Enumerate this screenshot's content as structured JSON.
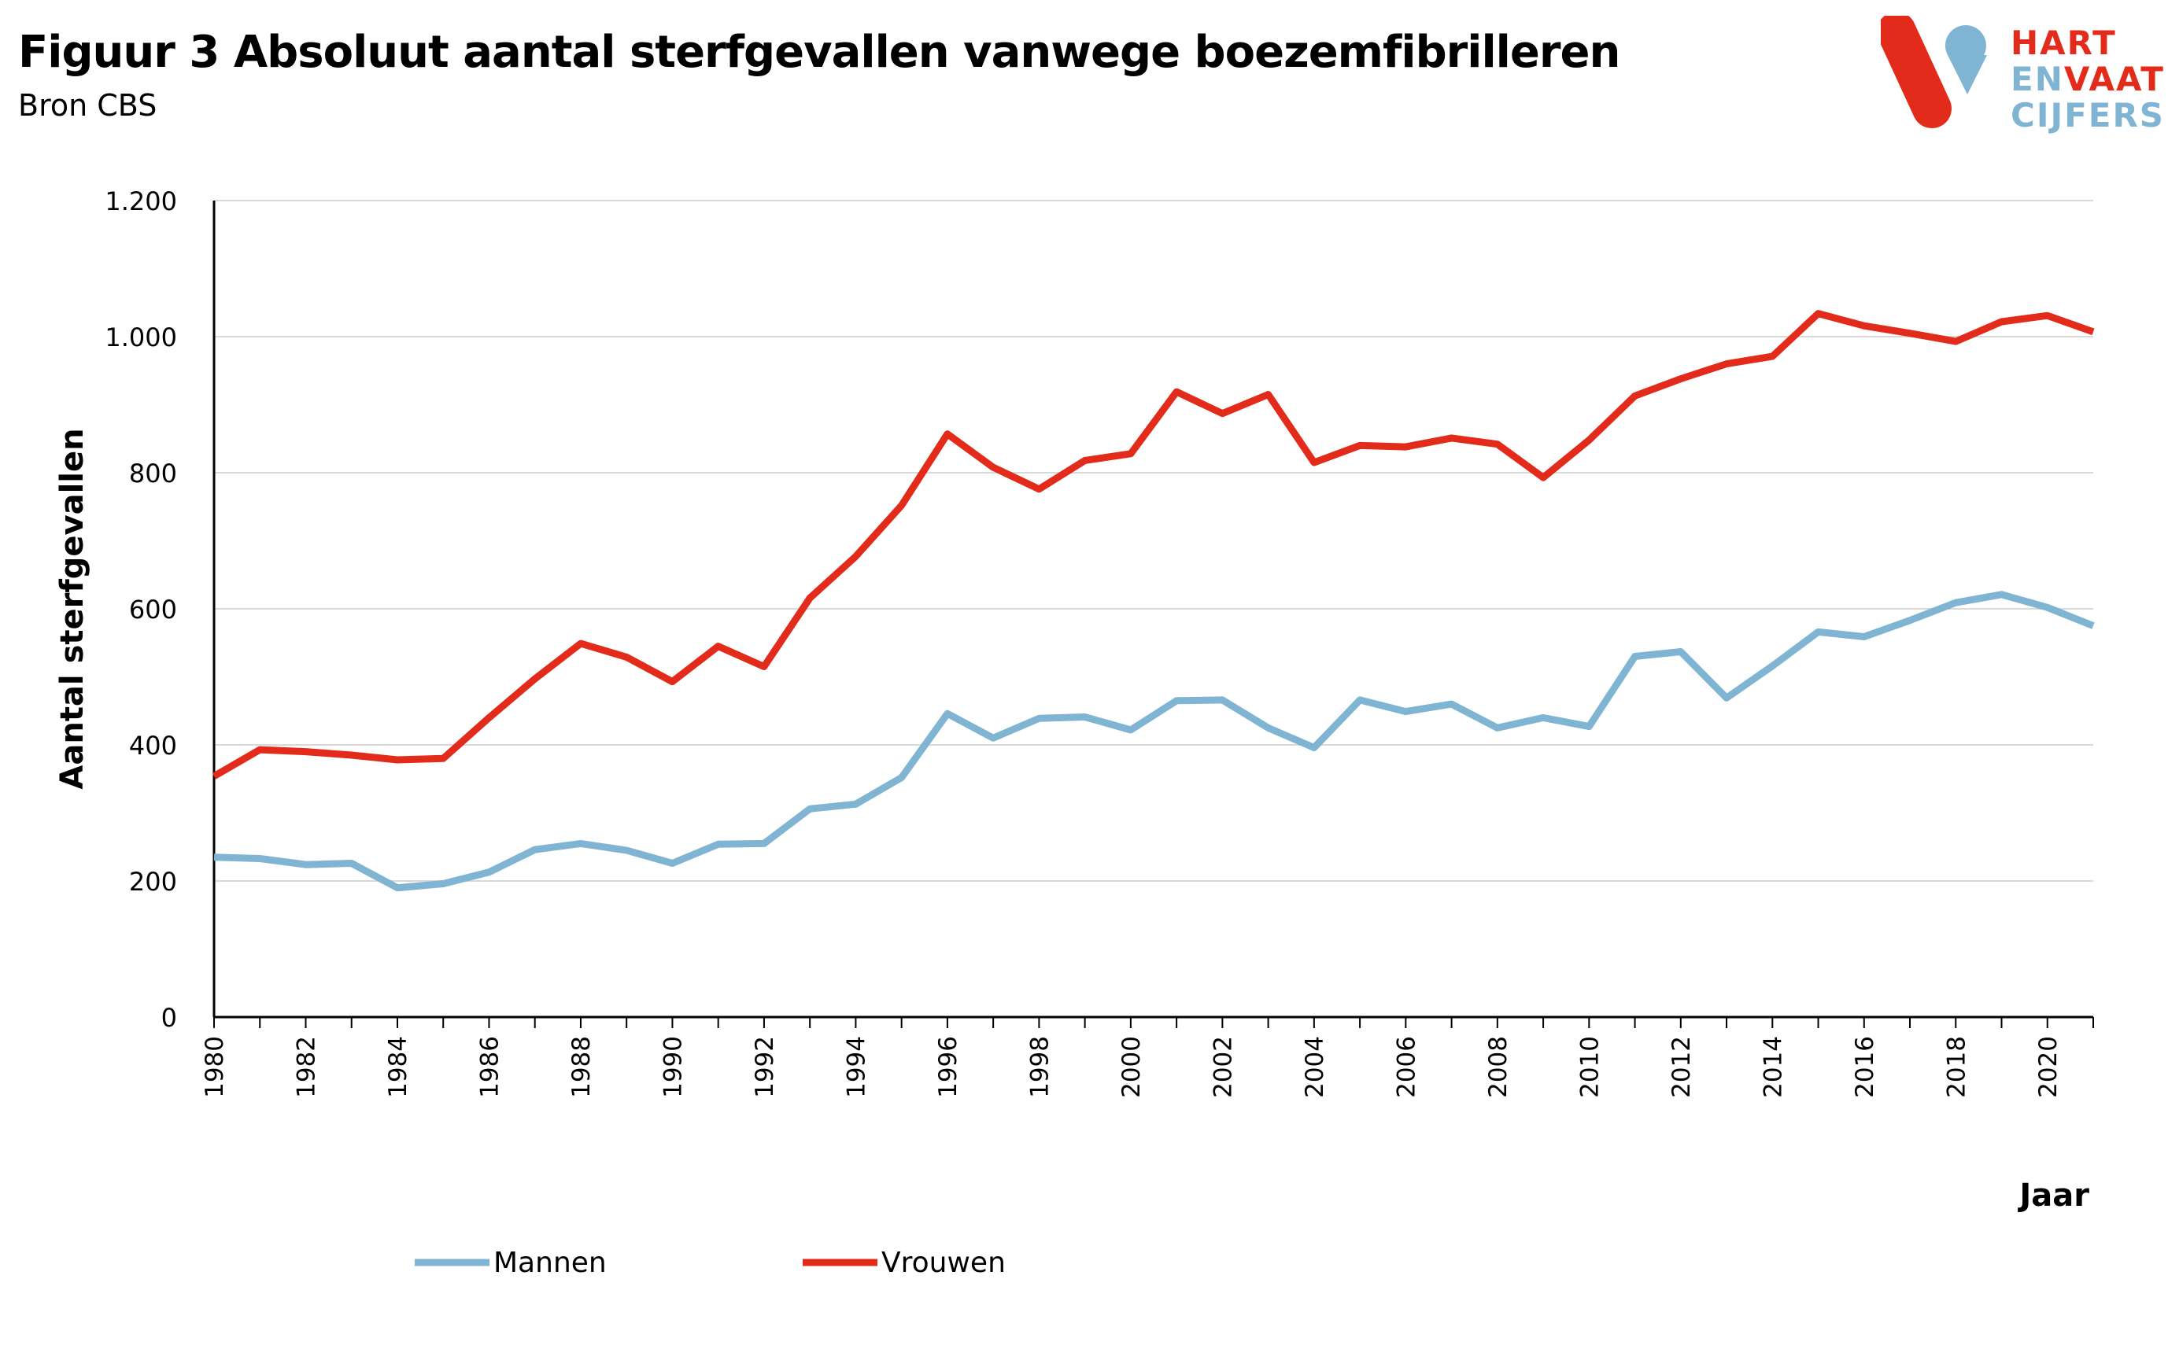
{
  "header": {
    "title": "Figuur 3 Absoluut aantal sterfgevallen vanwege boezemfibrilleren",
    "subtitle": "Bron CBS"
  },
  "logo": {
    "line1": "HART",
    "line2a": "EN",
    "line2b": "VAAT",
    "line3": "CIJFERS",
    "colors": {
      "red": "#e32b1b",
      "blue": "#7fb5d3"
    }
  },
  "chart_data": {
    "type": "line",
    "title": "Figuur 3 Absoluut aantal sterfgevallen vanwege boezemfibrilleren",
    "subtitle": "Bron CBS",
    "xlabel": "Jaar",
    "ylabel": "Aantal sterfgevallen",
    "ylim": [
      0,
      1200
    ],
    "xlim": [
      1980,
      2021
    ],
    "y_ticks": [
      0,
      200,
      400,
      600,
      800,
      1000,
      1200
    ],
    "y_tick_labels": [
      "0",
      "200",
      "400",
      "600",
      "800",
      "1.000",
      "1.200"
    ],
    "x_ticks": [
      1980,
      1982,
      1984,
      1986,
      1988,
      1990,
      1992,
      1994,
      1996,
      1998,
      2000,
      2002,
      2004,
      2006,
      2008,
      2010,
      2012,
      2014,
      2016,
      2018,
      2020
    ],
    "grid": "horizontal",
    "legend_position": "bottom-left",
    "x": [
      1980,
      1981,
      1982,
      1983,
      1984,
      1985,
      1986,
      1987,
      1988,
      1989,
      1990,
      1991,
      1992,
      1993,
      1994,
      1995,
      1996,
      1997,
      1998,
      1999,
      2000,
      2001,
      2002,
      2003,
      2004,
      2005,
      2006,
      2007,
      2008,
      2009,
      2010,
      2011,
      2012,
      2013,
      2014,
      2015,
      2016,
      2017,
      2018,
      2019,
      2020,
      2021
    ],
    "series": [
      {
        "name": "Mannen",
        "color": "#7fb5d3",
        "values": [
          235,
          233,
          224,
          226,
          190,
          196,
          213,
          246,
          255,
          245,
          226,
          254,
          255,
          306,
          313,
          352,
          446,
          410,
          439,
          441,
          422,
          465,
          466,
          425,
          396,
          466,
          449,
          460,
          425,
          440,
          427,
          530,
          537,
          469,
          516,
          566,
          559,
          583,
          609,
          621,
          602,
          575
        ]
      },
      {
        "name": "Vrouwen",
        "color": "#e32b1b",
        "values": [
          354,
          393,
          390,
          385,
          378,
          380,
          440,
          497,
          549,
          529,
          493,
          545,
          515,
          616,
          677,
          752,
          857,
          808,
          776,
          818,
          828,
          919,
          887,
          915,
          815,
          840,
          838,
          851,
          842,
          793,
          848,
          913,
          938,
          960,
          971,
          1034,
          1016,
          1005,
          993,
          1022,
          1031,
          1007
        ]
      }
    ]
  }
}
